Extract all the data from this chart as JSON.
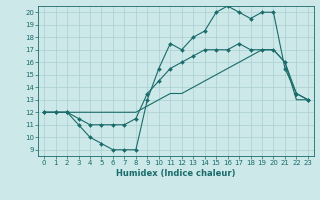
{
  "xlabel": "Humidex (Indice chaleur)",
  "background_color": "#cce8e8",
  "grid_color": "#aacfcf",
  "line_color": "#1a6b6b",
  "xlim": [
    -0.5,
    23.5
  ],
  "ylim": [
    8.5,
    20.5
  ],
  "yticks": [
    9,
    10,
    11,
    12,
    13,
    14,
    15,
    16,
    17,
    18,
    19,
    20
  ],
  "xticks": [
    0,
    1,
    2,
    3,
    4,
    5,
    6,
    7,
    8,
    9,
    10,
    11,
    12,
    13,
    14,
    15,
    16,
    17,
    18,
    19,
    20,
    21,
    22,
    23
  ],
  "series1_x": [
    0,
    1,
    2,
    3,
    4,
    5,
    6,
    7,
    8,
    9,
    10,
    11,
    12,
    13,
    14,
    15,
    16,
    17,
    18,
    19,
    20,
    21,
    22,
    23
  ],
  "series1_y": [
    12,
    12,
    12,
    11,
    10,
    9.5,
    9,
    9,
    9,
    13,
    15.5,
    17.5,
    17,
    18,
    18.5,
    20,
    20.5,
    20,
    19.5,
    20,
    20,
    15.5,
    13.5,
    13
  ],
  "series2_x": [
    0,
    1,
    2,
    3,
    4,
    5,
    6,
    7,
    8,
    9,
    10,
    11,
    12,
    13,
    14,
    15,
    16,
    17,
    18,
    19,
    20,
    21,
    22,
    23
  ],
  "series2_y": [
    12,
    12,
    12,
    11.5,
    11,
    11,
    11,
    11,
    11.5,
    13.5,
    14.5,
    15.5,
    16,
    16.5,
    17,
    17,
    17,
    17.5,
    17,
    17,
    17,
    16,
    13.5,
    13
  ],
  "series3_x": [
    0,
    1,
    2,
    3,
    4,
    5,
    6,
    7,
    8,
    9,
    10,
    11,
    12,
    13,
    14,
    15,
    16,
    17,
    18,
    19,
    20,
    21,
    22,
    23
  ],
  "series3_y": [
    12,
    12,
    12,
    12,
    12,
    12,
    12,
    12,
    12,
    12.5,
    13,
    13.5,
    13.5,
    14,
    14.5,
    15,
    15.5,
    16,
    16.5,
    17,
    17,
    16,
    13,
    13
  ],
  "marker": "D",
  "markersize": 2.0,
  "linewidth": 0.8,
  "tick_fontsize": 5.0,
  "xlabel_fontsize": 6.0
}
